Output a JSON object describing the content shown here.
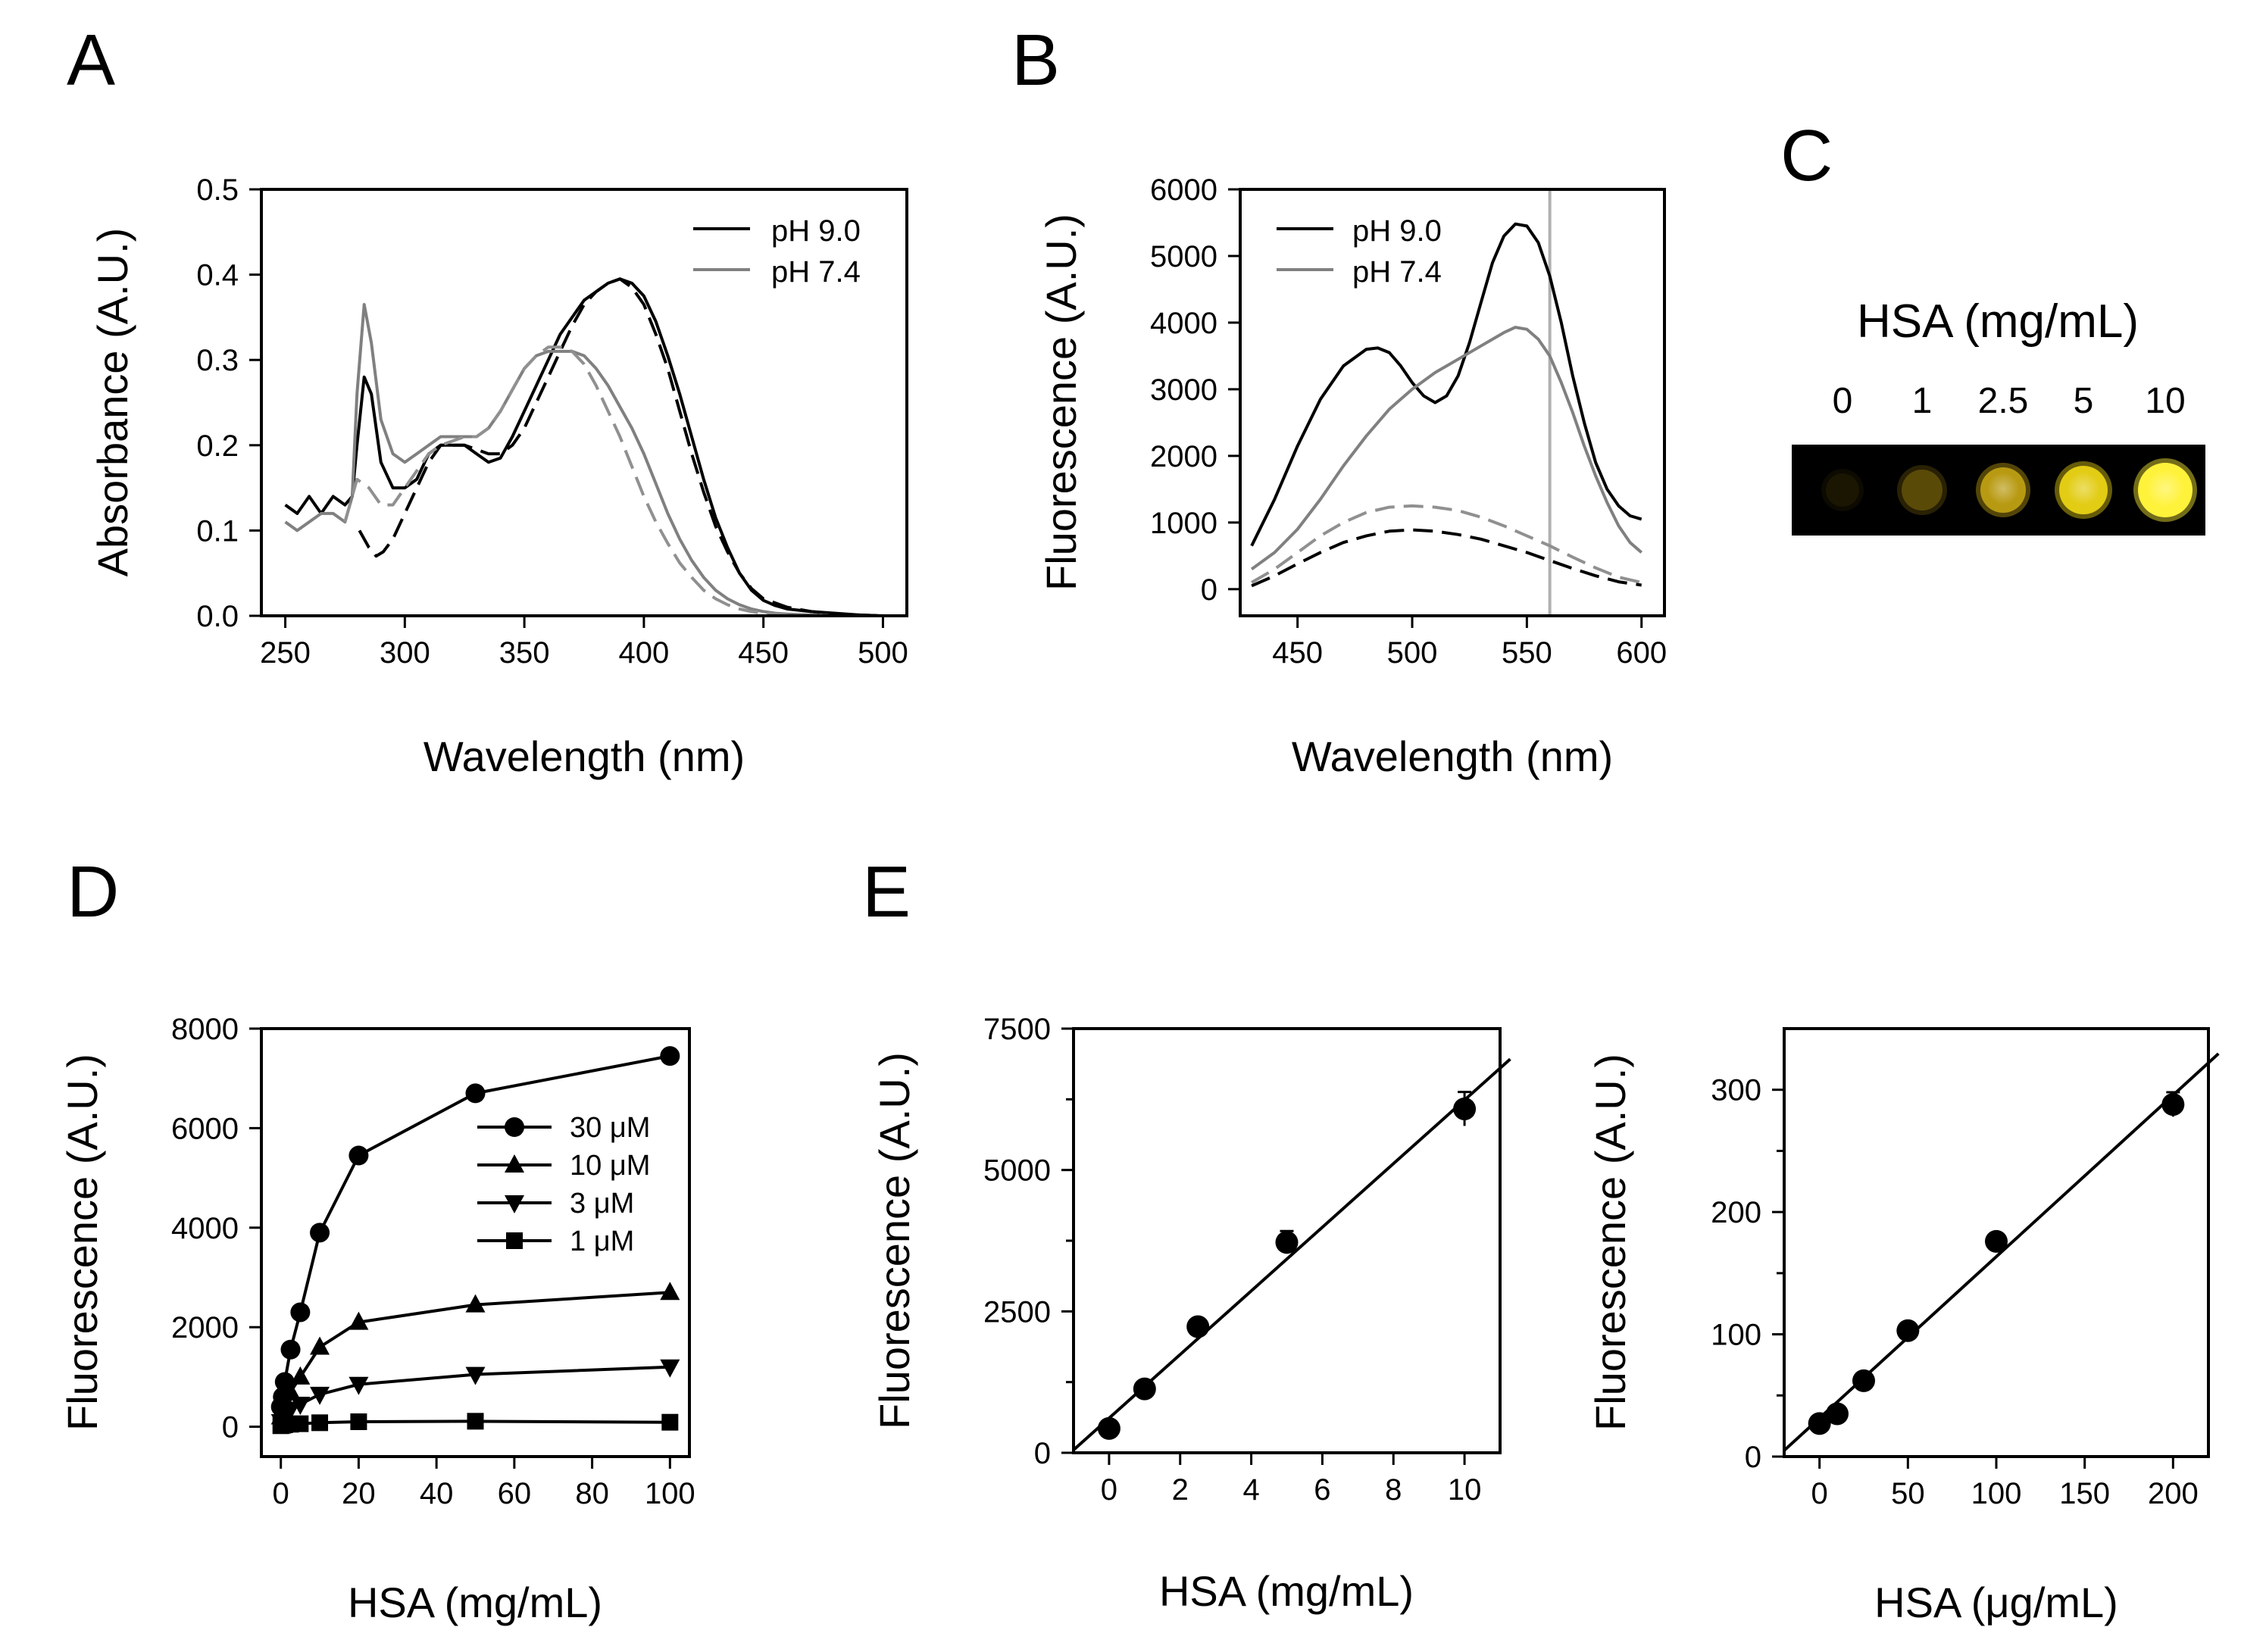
{
  "panel_labels": {
    "A": "A",
    "B": "B",
    "C": "C",
    "D": "D",
    "E": "E"
  },
  "chart_data": [
    {
      "id": "A",
      "type": "line",
      "xlabel": "Wavelength (nm)",
      "ylabel": "Absorbance (A.U.)",
      "xlim": [
        240,
        510
      ],
      "ylim": [
        0,
        0.5
      ],
      "xticks": [
        250,
        300,
        350,
        400,
        450,
        500
      ],
      "xticklabels": [
        "250",
        "300",
        "350",
        "400",
        "450",
        "500"
      ],
      "yticks": [
        0,
        0.1,
        0.2,
        0.3,
        0.4,
        0.5
      ],
      "yticklabels": [
        "0.0",
        "0.1",
        "0.2",
        "0.3",
        "0.4",
        "0.5"
      ],
      "legend": [
        "pH 9.0",
        "pH 7.4"
      ],
      "series": [
        {
          "name": "pH 9.0",
          "color": "#000000",
          "dash": false,
          "x": [
            250,
            255,
            260,
            265,
            270,
            275,
            278,
            280,
            283,
            286,
            290,
            295,
            300,
            305,
            310,
            315,
            320,
            325,
            330,
            335,
            340,
            345,
            350,
            355,
            360,
            365,
            370,
            375,
            380,
            385,
            390,
            395,
            400,
            405,
            410,
            415,
            420,
            425,
            430,
            435,
            440,
            445,
            450,
            455,
            460,
            470,
            480,
            490,
            500
          ],
          "y": [
            0.13,
            0.12,
            0.14,
            0.12,
            0.14,
            0.13,
            0.14,
            0.2,
            0.28,
            0.26,
            0.18,
            0.15,
            0.15,
            0.16,
            0.19,
            0.2,
            0.2,
            0.2,
            0.19,
            0.18,
            0.185,
            0.21,
            0.24,
            0.27,
            0.3,
            0.33,
            0.35,
            0.37,
            0.38,
            0.39,
            0.395,
            0.39,
            0.375,
            0.345,
            0.305,
            0.26,
            0.21,
            0.16,
            0.115,
            0.08,
            0.05,
            0.03,
            0.018,
            0.012,
            0.008,
            0.005,
            0.003,
            0.001,
            0.0
          ]
        },
        {
          "name": "pH 7.4",
          "color": "#808080",
          "dash": false,
          "x": [
            250,
            255,
            260,
            265,
            270,
            275,
            278,
            280,
            283,
            286,
            290,
            295,
            300,
            305,
            310,
            315,
            320,
            325,
            330,
            335,
            340,
            345,
            350,
            355,
            360,
            365,
            370,
            375,
            380,
            385,
            390,
            395,
            400,
            405,
            410,
            415,
            420,
            425,
            430,
            435,
            440,
            445,
            450,
            455,
            460,
            470,
            480,
            490,
            500
          ],
          "y": [
            0.11,
            0.1,
            0.11,
            0.12,
            0.12,
            0.11,
            0.14,
            0.26,
            0.365,
            0.32,
            0.23,
            0.19,
            0.18,
            0.19,
            0.2,
            0.21,
            0.21,
            0.21,
            0.21,
            0.22,
            0.24,
            0.265,
            0.29,
            0.305,
            0.31,
            0.31,
            0.31,
            0.305,
            0.29,
            0.27,
            0.245,
            0.22,
            0.19,
            0.155,
            0.12,
            0.09,
            0.065,
            0.045,
            0.03,
            0.02,
            0.013,
            0.008,
            0.005,
            0.003,
            0.002,
            0.001,
            0.0,
            0.0,
            0.0
          ]
        },
        {
          "name": "pH 9.0 (dashed)",
          "color": "#000000",
          "dash": true,
          "x": [
            281,
            285,
            288,
            291,
            295,
            300,
            305,
            310,
            315,
            320,
            325,
            330,
            335,
            340,
            345,
            350,
            355,
            360,
            365,
            370,
            375,
            380,
            385,
            390,
            395,
            400,
            405,
            410,
            415,
            420,
            425,
            430,
            435,
            440,
            445,
            450,
            460,
            470,
            480,
            490,
            500
          ],
          "y": [
            0.1,
            0.08,
            0.07,
            0.075,
            0.09,
            0.12,
            0.15,
            0.18,
            0.2,
            0.2,
            0.2,
            0.195,
            0.19,
            0.19,
            0.2,
            0.22,
            0.25,
            0.28,
            0.31,
            0.34,
            0.365,
            0.38,
            0.39,
            0.395,
            0.385,
            0.365,
            0.33,
            0.29,
            0.24,
            0.19,
            0.145,
            0.105,
            0.075,
            0.05,
            0.032,
            0.02,
            0.01,
            0.005,
            0.002,
            0.001,
            0.0
          ]
        },
        {
          "name": "pH 7.4 (dashed)",
          "color": "#909090",
          "dash": true,
          "x": [
            275,
            280,
            285,
            290,
            295,
            300,
            305,
            310,
            315,
            320,
            325,
            330,
            335,
            340,
            345,
            350,
            355,
            360,
            365,
            370,
            375,
            380,
            385,
            390,
            395,
            400,
            405,
            410,
            415,
            420,
            425,
            430,
            435,
            440,
            445,
            450,
            460,
            470,
            480,
            490,
            500
          ],
          "y": [
            0.11,
            0.16,
            0.15,
            0.13,
            0.13,
            0.15,
            0.17,
            0.19,
            0.2,
            0.205,
            0.21,
            0.21,
            0.22,
            0.24,
            0.265,
            0.29,
            0.305,
            0.315,
            0.315,
            0.31,
            0.295,
            0.27,
            0.24,
            0.21,
            0.175,
            0.14,
            0.11,
            0.085,
            0.062,
            0.045,
            0.03,
            0.02,
            0.013,
            0.008,
            0.005,
            0.003,
            0.001,
            0.0,
            0.0,
            0.0,
            0.0
          ]
        }
      ]
    },
    {
      "id": "B",
      "type": "line",
      "xlabel": "Wavelength (nm)",
      "ylabel": "Fluorescence (A.U.)",
      "xlim": [
        425,
        610
      ],
      "ylim": [
        -400,
        6000
      ],
      "xticks": [
        450,
        500,
        550,
        600
      ],
      "xticklabels": [
        "450",
        "500",
        "550",
        "600"
      ],
      "yticks": [
        0,
        1000,
        2000,
        3000,
        4000,
        5000,
        6000
      ],
      "yticklabels": [
        "0",
        "1000",
        "2000",
        "3000",
        "4000",
        "5000",
        "6000"
      ],
      "legend": [
        "pH 9.0",
        "pH 7.4"
      ],
      "vline": 560,
      "series": [
        {
          "name": "pH 9.0",
          "color": "#000000",
          "dash": false,
          "x": [
            430,
            440,
            450,
            460,
            470,
            480,
            485,
            490,
            495,
            500,
            505,
            510,
            515,
            520,
            525,
            530,
            535,
            540,
            545,
            550,
            555,
            560,
            565,
            570,
            575,
            580,
            585,
            590,
            595,
            600
          ],
          "y": [
            650,
            1350,
            2150,
            2850,
            3350,
            3600,
            3620,
            3550,
            3350,
            3100,
            2900,
            2800,
            2900,
            3200,
            3700,
            4300,
            4900,
            5300,
            5480,
            5450,
            5200,
            4700,
            4000,
            3200,
            2500,
            1900,
            1500,
            1250,
            1100,
            1050
          ]
        },
        {
          "name": "pH 7.4",
          "color": "#808080",
          "dash": false,
          "x": [
            430,
            440,
            450,
            460,
            470,
            480,
            490,
            500,
            510,
            520,
            530,
            540,
            545,
            550,
            555,
            560,
            565,
            570,
            575,
            580,
            585,
            590,
            595,
            600
          ],
          "y": [
            300,
            550,
            900,
            1350,
            1850,
            2300,
            2700,
            3000,
            3250,
            3450,
            3650,
            3850,
            3930,
            3900,
            3750,
            3500,
            3100,
            2650,
            2150,
            1700,
            1300,
            950,
            700,
            550
          ]
        },
        {
          "name": "pH 7.4 (dashed)",
          "color": "#909090",
          "dash": true,
          "x": [
            430,
            440,
            450,
            460,
            470,
            480,
            490,
            500,
            510,
            520,
            530,
            540,
            550,
            560,
            570,
            580,
            590,
            600
          ],
          "y": [
            100,
            300,
            550,
            800,
            1000,
            1150,
            1230,
            1250,
            1230,
            1180,
            1080,
            950,
            800,
            650,
            480,
            320,
            180,
            100
          ]
        },
        {
          "name": "pH 9.0 (dashed)",
          "color": "#000000",
          "dash": true,
          "x": [
            430,
            440,
            450,
            460,
            470,
            480,
            490,
            500,
            510,
            520,
            530,
            540,
            550,
            560,
            570,
            580,
            590,
            600
          ],
          "y": [
            50,
            200,
            380,
            550,
            700,
            800,
            870,
            890,
            870,
            820,
            750,
            650,
            550,
            430,
            310,
            200,
            110,
            60
          ]
        }
      ]
    },
    {
      "id": "D",
      "type": "line",
      "xlabel": "HSA (mg/mL)",
      "ylabel": "Fluorescence (A.U.)",
      "xlim": [
        -5,
        105
      ],
      "ylim": [
        -600,
        8000
      ],
      "xticks": [
        0,
        20,
        40,
        60,
        80,
        100
      ],
      "xticklabels": [
        "0",
        "20",
        "40",
        "60",
        "80",
        "100"
      ],
      "yticks": [
        0,
        2000,
        4000,
        6000,
        8000
      ],
      "yticklabels": [
        "0",
        "2000",
        "4000",
        "6000",
        "8000"
      ],
      "legend": [
        "30 μM",
        "10 μM",
        "3 μM",
        "1 μM"
      ],
      "series": [
        {
          "name": "30 μM",
          "marker": "circle",
          "x": [
            0,
            0.5,
            1,
            2.5,
            5,
            10,
            20,
            50,
            100
          ],
          "y": [
            400,
            600,
            900,
            1550,
            2300,
            3900,
            5450,
            6700,
            7450
          ]
        },
        {
          "name": "10 μM",
          "marker": "triangle-up",
          "x": [
            0,
            0.5,
            1,
            2.5,
            5,
            10,
            20,
            50,
            100
          ],
          "y": [
            200,
            300,
            450,
            700,
            1000,
            1600,
            2100,
            2450,
            2700
          ]
        },
        {
          "name": "3 μM",
          "marker": "triangle-down",
          "x": [
            0,
            0.5,
            1,
            2.5,
            5,
            10,
            20,
            50,
            100
          ],
          "y": [
            100,
            150,
            200,
            350,
            450,
            650,
            850,
            1050,
            1200
          ]
        },
        {
          "name": "1 μM",
          "marker": "square",
          "x": [
            0,
            0.5,
            1,
            2.5,
            5,
            10,
            20,
            50,
            100
          ],
          "y": [
            20,
            30,
            40,
            50,
            60,
            80,
            100,
            110,
            90
          ]
        }
      ]
    },
    {
      "id": "E1",
      "type": "scatter",
      "xlabel": "HSA (mg/mL)",
      "ylabel": "Fluorescence (A.U.)",
      "xlim": [
        -1,
        11
      ],
      "ylim": [
        0,
        7500
      ],
      "xticks": [
        0,
        2,
        4,
        6,
        8,
        10
      ],
      "xticklabels": [
        "0",
        "2",
        "4",
        "6",
        "8",
        "10"
      ],
      "yticks": [
        0,
        2500,
        5000,
        7500
      ],
      "yticklabels": [
        "0",
        "2500",
        "5000",
        "7500"
      ],
      "minor_yticks": [
        1250,
        3750,
        6250
      ],
      "x": [
        0,
        1,
        2.5,
        5,
        10
      ],
      "y": [
        430,
        1130,
        2230,
        3720,
        6080
      ],
      "err": [
        80,
        80,
        100,
        200,
        300
      ],
      "fit": {
        "x": [
          -1,
          11
        ],
        "y": [
          50,
          6800
        ]
      }
    },
    {
      "id": "E2",
      "type": "scatter",
      "xlabel": "HSA (μg/mL)",
      "ylabel": "Fluorescence (A.U.)",
      "xlim": [
        -20,
        220
      ],
      "ylim": [
        0,
        350
      ],
      "xticks": [
        0,
        50,
        100,
        150,
        200
      ],
      "xticklabels": [
        "0",
        "50",
        "100",
        "150",
        "200"
      ],
      "yticks": [
        0,
        100,
        200,
        300
      ],
      "yticklabels": [
        "0",
        "100",
        "200",
        "300"
      ],
      "minor_yticks": [
        50,
        150,
        250
      ],
      "x": [
        0,
        10,
        25,
        50,
        100,
        200
      ],
      "y": [
        27,
        35,
        62,
        103,
        176,
        288
      ],
      "err": [
        3,
        3,
        3,
        4,
        6,
        10
      ],
      "fit": {
        "x": [
          -20,
          220
        ],
        "y": [
          5,
          322
        ]
      }
    }
  ],
  "panel_c": {
    "title": "HSA (mg/mL)",
    "labels": [
      "0",
      "1",
      "2.5",
      "5",
      "10"
    ],
    "spot_colors": [
      "#1a1602",
      "#5a4a08",
      "#b89a12",
      "#e2cc14",
      "#fff23a"
    ]
  }
}
